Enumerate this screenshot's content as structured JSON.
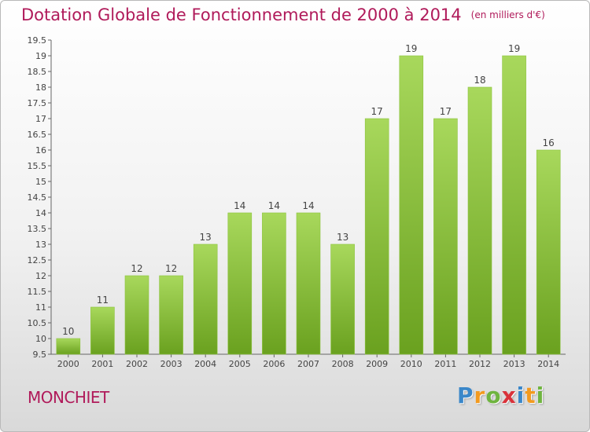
{
  "title": "Dotation Globale de Fonctionnement de 2000 à 2014",
  "subtitle": "(en milliers d'€)",
  "commune": "MONCHIET",
  "logo": {
    "letters": [
      "P",
      "r",
      "o",
      "x",
      "i",
      "t",
      "i"
    ],
    "colors": [
      "#3a87c9",
      "#f29a1f",
      "#6fb43f",
      "#d9323a",
      "#3a87c9",
      "#f29a1f",
      "#6fb43f"
    ]
  },
  "colors": {
    "title": "#b01a5a",
    "bar_light": "#a6d65a",
    "bar_dark": "#6fa623",
    "axis": "#555555"
  },
  "chart_data": {
    "type": "bar",
    "title": "Dotation Globale de Fonctionnement de 2000 à 2014",
    "subtitle": "(en milliers d'€)",
    "categories": [
      "2000",
      "2001",
      "2002",
      "2003",
      "2004",
      "2005",
      "2006",
      "2007",
      "2008",
      "2009",
      "2010",
      "2011",
      "2012",
      "2013",
      "2014"
    ],
    "values": [
      10,
      11,
      12,
      12,
      13,
      14,
      14,
      14,
      13,
      17,
      19,
      17,
      18,
      19,
      16
    ],
    "ylim": [
      9.5,
      19.5
    ],
    "yticks": [
      "9.5",
      "10",
      "10.5",
      "11",
      "11.5",
      "12",
      "12.5",
      "13",
      "13.5",
      "14",
      "14.5",
      "15",
      "15.5",
      "16",
      "16.5",
      "17",
      "17.5",
      "18",
      "18.5",
      "19",
      "19.5"
    ],
    "xlabel": "",
    "ylabel": "",
    "grid": false,
    "data_labels": true
  }
}
